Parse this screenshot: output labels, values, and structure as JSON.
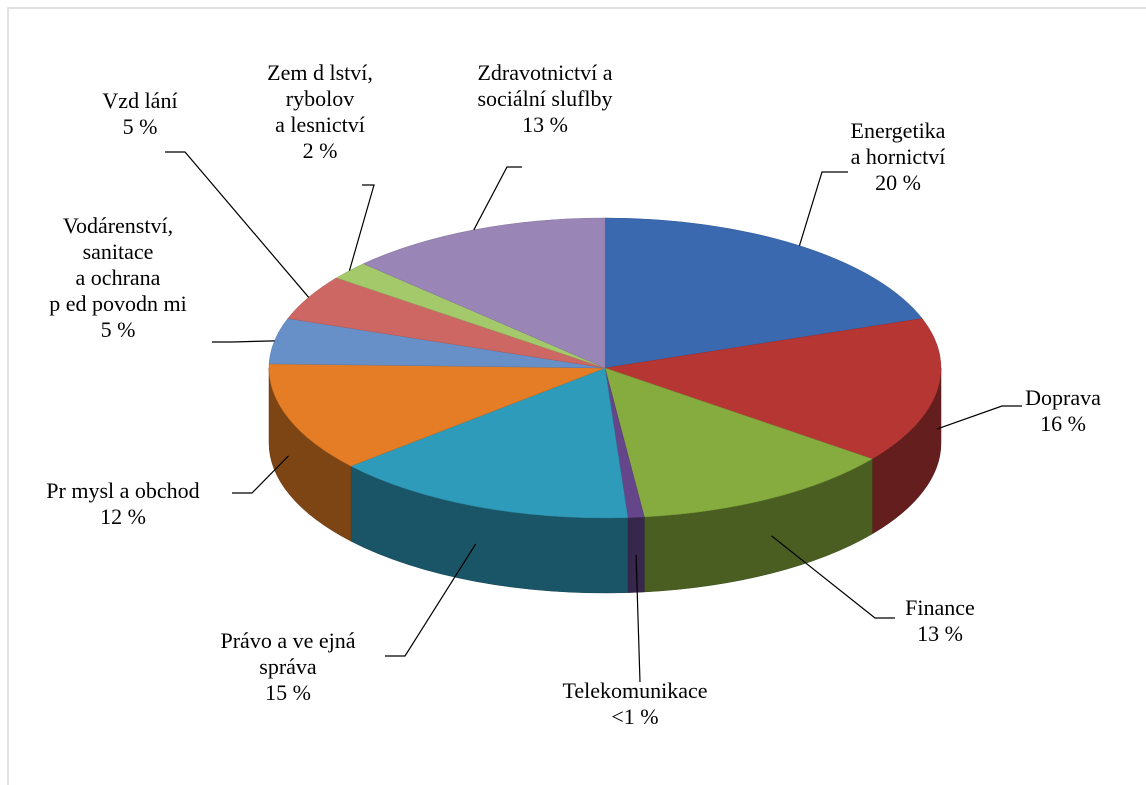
{
  "chart_data": {
    "type": "pie",
    "categories": [
      "Energetika\na hornictví",
      "Doprava",
      "Finance",
      "Telekomunikace",
      "Právo a ve ejná\nspráva",
      "Pr  mysl a obchod",
      "Vodárenství,\nsanitace\na ochrana\np ed povodn mi",
      "Vzd lání",
      "Zem d lství,\nrybolov\na lesnictví",
      "Zdravotnictví a\nsociální sluflby"
    ],
    "values": [
      20,
      16,
      13,
      0.8,
      15,
      12,
      5,
      5,
      2,
      13
    ],
    "value_labels": [
      "20 %",
      "16 %",
      "13 %",
      "<1 %",
      "15 %",
      "12 %",
      "5 %",
      "5 %",
      "2 %",
      "13 %"
    ],
    "colors": [
      "#3a69b0",
      "#b63634",
      "#86ab3e",
      "#65468a",
      "#2e9bba",
      "#e47d25",
      "#6790c9",
      "#cc6764",
      "#a3c96a",
      "#9a86b6"
    ]
  }
}
